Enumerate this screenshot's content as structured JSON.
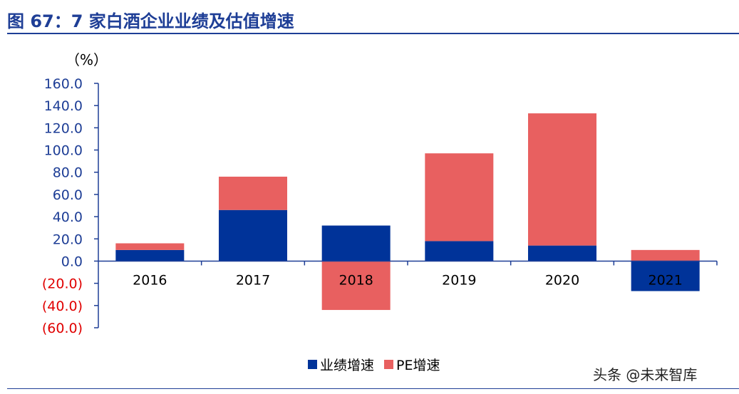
{
  "header": {
    "title": "图 67：7 家白酒企业业绩及估值增速"
  },
  "colors": {
    "title": "#1e3e96",
    "series_performance": "#003399",
    "series_pe": "#e86060",
    "axis": "#1e3e96",
    "negative_tick": "#e00000"
  },
  "chart_data": {
    "type": "bar",
    "stacked": true,
    "unit_label": "（%）",
    "categories": [
      "2016",
      "2017",
      "2018",
      "2019",
      "2020",
      "2021"
    ],
    "series": [
      {
        "name": "业绩增速",
        "values": [
          10.0,
          46.0,
          32.0,
          18.0,
          14.0,
          -27.0
        ]
      },
      {
        "name": "PE增速",
        "values": [
          6.0,
          30.0,
          -44.0,
          79.0,
          119.0,
          10.0
        ]
      }
    ],
    "ylim": [
      -60,
      160
    ],
    "yticks": [
      160,
      140,
      120,
      100,
      80,
      60,
      40,
      20,
      0,
      -20,
      -40,
      -60
    ],
    "ytick_labels": [
      "160.0",
      "140.0",
      "120.0",
      "100.0",
      "80.0",
      "60.0",
      "40.0",
      "20.0",
      "0.0",
      "(20.0)",
      "(40.0)",
      "(60.0)"
    ],
    "legend_position": "bottom",
    "grid": false
  },
  "watermark": "头条 @未来智库"
}
